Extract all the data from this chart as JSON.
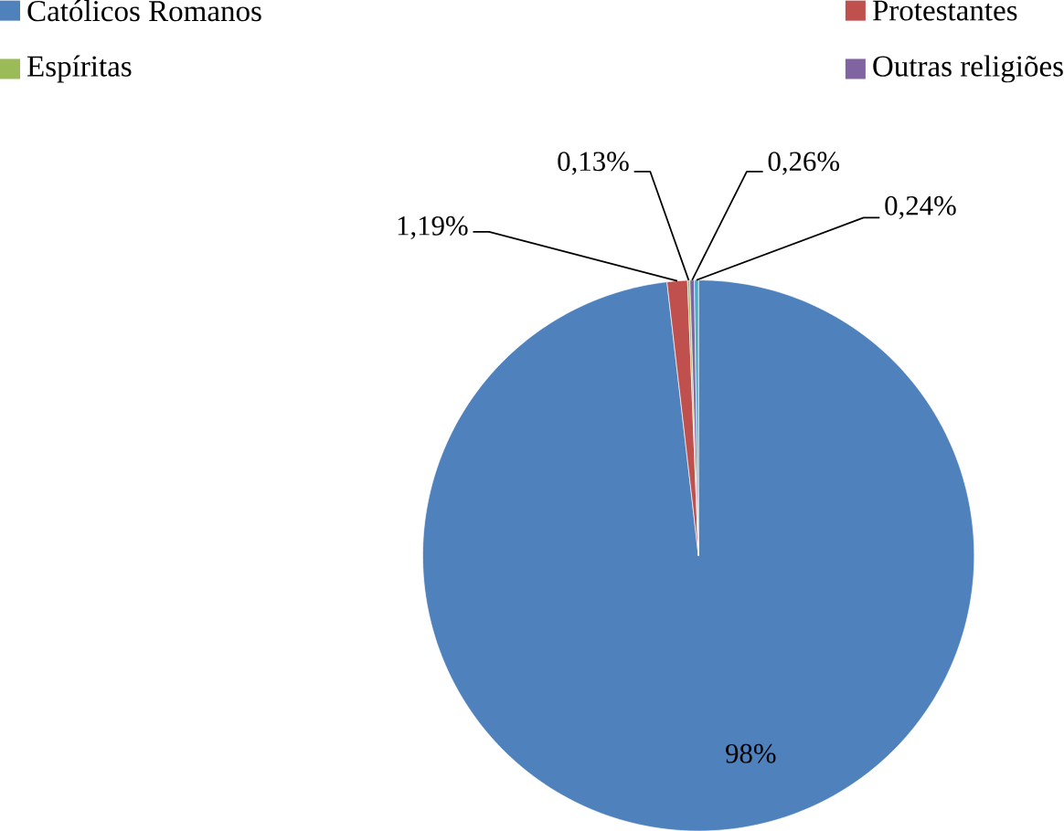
{
  "chart_data": {
    "type": "pie",
    "categories": [
      "Católicos Romanos",
      "Protestantes",
      "Espíritas",
      "Outras religiões",
      null
    ],
    "values": [
      98,
      1.19,
      0.13,
      0.26,
      0.24
    ],
    "colors": [
      "#4f81bd",
      "#c0504d",
      "#9bbb59",
      "#8064a2",
      "#4bacc6"
    ],
    "value_labels": [
      "98%",
      "1,19%",
      "0,13%",
      "0,26%",
      "0,24%"
    ],
    "legend": "top"
  }
}
